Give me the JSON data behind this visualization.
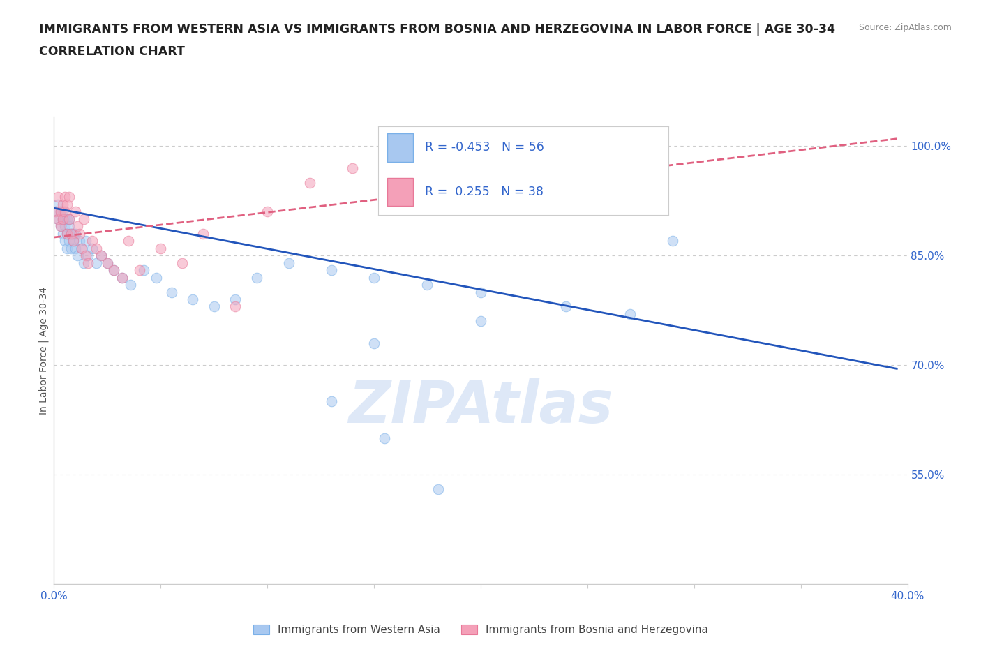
{
  "title_line1": "IMMIGRANTS FROM WESTERN ASIA VS IMMIGRANTS FROM BOSNIA AND HERZEGOVINA IN LABOR FORCE | AGE 30-34",
  "title_line2": "CORRELATION CHART",
  "source_text": "Source: ZipAtlas.com",
  "ylabel": "In Labor Force | Age 30-34",
  "xlim": [
    0.0,
    0.4
  ],
  "ylim": [
    0.4,
    1.04
  ],
  "xticks": [
    0.0,
    0.05,
    0.1,
    0.15,
    0.2,
    0.25,
    0.3,
    0.35,
    0.4
  ],
  "xtick_labels": [
    "0.0%",
    "",
    "",
    "",
    "",
    "",
    "",
    "",
    "40.0%"
  ],
  "ytick_positions": [
    0.55,
    0.7,
    0.85,
    1.0
  ],
  "ytick_labels": [
    "55.0%",
    "70.0%",
    "85.0%",
    "100.0%"
  ],
  "gridline_color": "#cccccc",
  "background_color": "#ffffff",
  "watermark_text": "ZIPAtlas",
  "watermark_color": "#d0dff5",
  "blue_series": {
    "name": "Immigrants from Western Asia",
    "color": "#a8c8f0",
    "edge_color": "#7ab0e8",
    "R": -0.453,
    "N": 56,
    "line_color": "#2255bb",
    "line_x0": 0.0,
    "line_x1": 0.395,
    "line_y0": 0.915,
    "line_y1": 0.695,
    "x": [
      0.001,
      0.002,
      0.002,
      0.003,
      0.003,
      0.004,
      0.004,
      0.004,
      0.005,
      0.005,
      0.005,
      0.006,
      0.006,
      0.006,
      0.007,
      0.007,
      0.007,
      0.008,
      0.008,
      0.009,
      0.009,
      0.01,
      0.01,
      0.011,
      0.012,
      0.013,
      0.014,
      0.015,
      0.016,
      0.018,
      0.02,
      0.022,
      0.025,
      0.028,
      0.032,
      0.036,
      0.042,
      0.048,
      0.055,
      0.065,
      0.075,
      0.085,
      0.095,
      0.11,
      0.13,
      0.15,
      0.175,
      0.2,
      0.24,
      0.27,
      0.15,
      0.2,
      0.13,
      0.29,
      0.155,
      0.18
    ],
    "y": [
      0.91,
      0.9,
      0.92,
      0.89,
      0.91,
      0.9,
      0.88,
      0.91,
      0.89,
      0.9,
      0.87,
      0.9,
      0.88,
      0.86,
      0.89,
      0.87,
      0.9,
      0.88,
      0.86,
      0.88,
      0.87,
      0.86,
      0.88,
      0.85,
      0.87,
      0.86,
      0.84,
      0.87,
      0.85,
      0.86,
      0.84,
      0.85,
      0.84,
      0.83,
      0.82,
      0.81,
      0.83,
      0.82,
      0.8,
      0.79,
      0.78,
      0.79,
      0.82,
      0.84,
      0.83,
      0.82,
      0.81,
      0.8,
      0.78,
      0.77,
      0.73,
      0.76,
      0.65,
      0.87,
      0.6,
      0.53
    ]
  },
  "pink_series": {
    "name": "Immigrants from Bosnia and Herzegovina",
    "color": "#f4a0b8",
    "edge_color": "#e87898",
    "R": 0.255,
    "N": 38,
    "line_color": "#e06080",
    "line_x0": 0.0,
    "line_x1": 0.395,
    "line_y0": 0.875,
    "line_y1": 1.01,
    "x": [
      0.001,
      0.002,
      0.002,
      0.003,
      0.003,
      0.004,
      0.004,
      0.005,
      0.005,
      0.006,
      0.006,
      0.007,
      0.007,
      0.008,
      0.009,
      0.01,
      0.011,
      0.012,
      0.013,
      0.014,
      0.015,
      0.016,
      0.018,
      0.02,
      0.022,
      0.025,
      0.028,
      0.032,
      0.035,
      0.04,
      0.05,
      0.06,
      0.07,
      0.085,
      0.1,
      0.12,
      0.14,
      0.16
    ],
    "y": [
      0.91,
      0.9,
      0.93,
      0.91,
      0.89,
      0.92,
      0.9,
      0.93,
      0.91,
      0.92,
      0.88,
      0.9,
      0.93,
      0.88,
      0.87,
      0.91,
      0.89,
      0.88,
      0.86,
      0.9,
      0.85,
      0.84,
      0.87,
      0.86,
      0.85,
      0.84,
      0.83,
      0.82,
      0.87,
      0.83,
      0.86,
      0.84,
      0.88,
      0.78,
      0.91,
      0.95,
      0.97,
      0.99
    ]
  },
  "title_fontsize": 12.5,
  "tick_fontsize": 11,
  "dot_size": 110,
  "dot_alpha": 0.55,
  "tick_color": "#3366cc",
  "legend_text_color": "#3366cc"
}
